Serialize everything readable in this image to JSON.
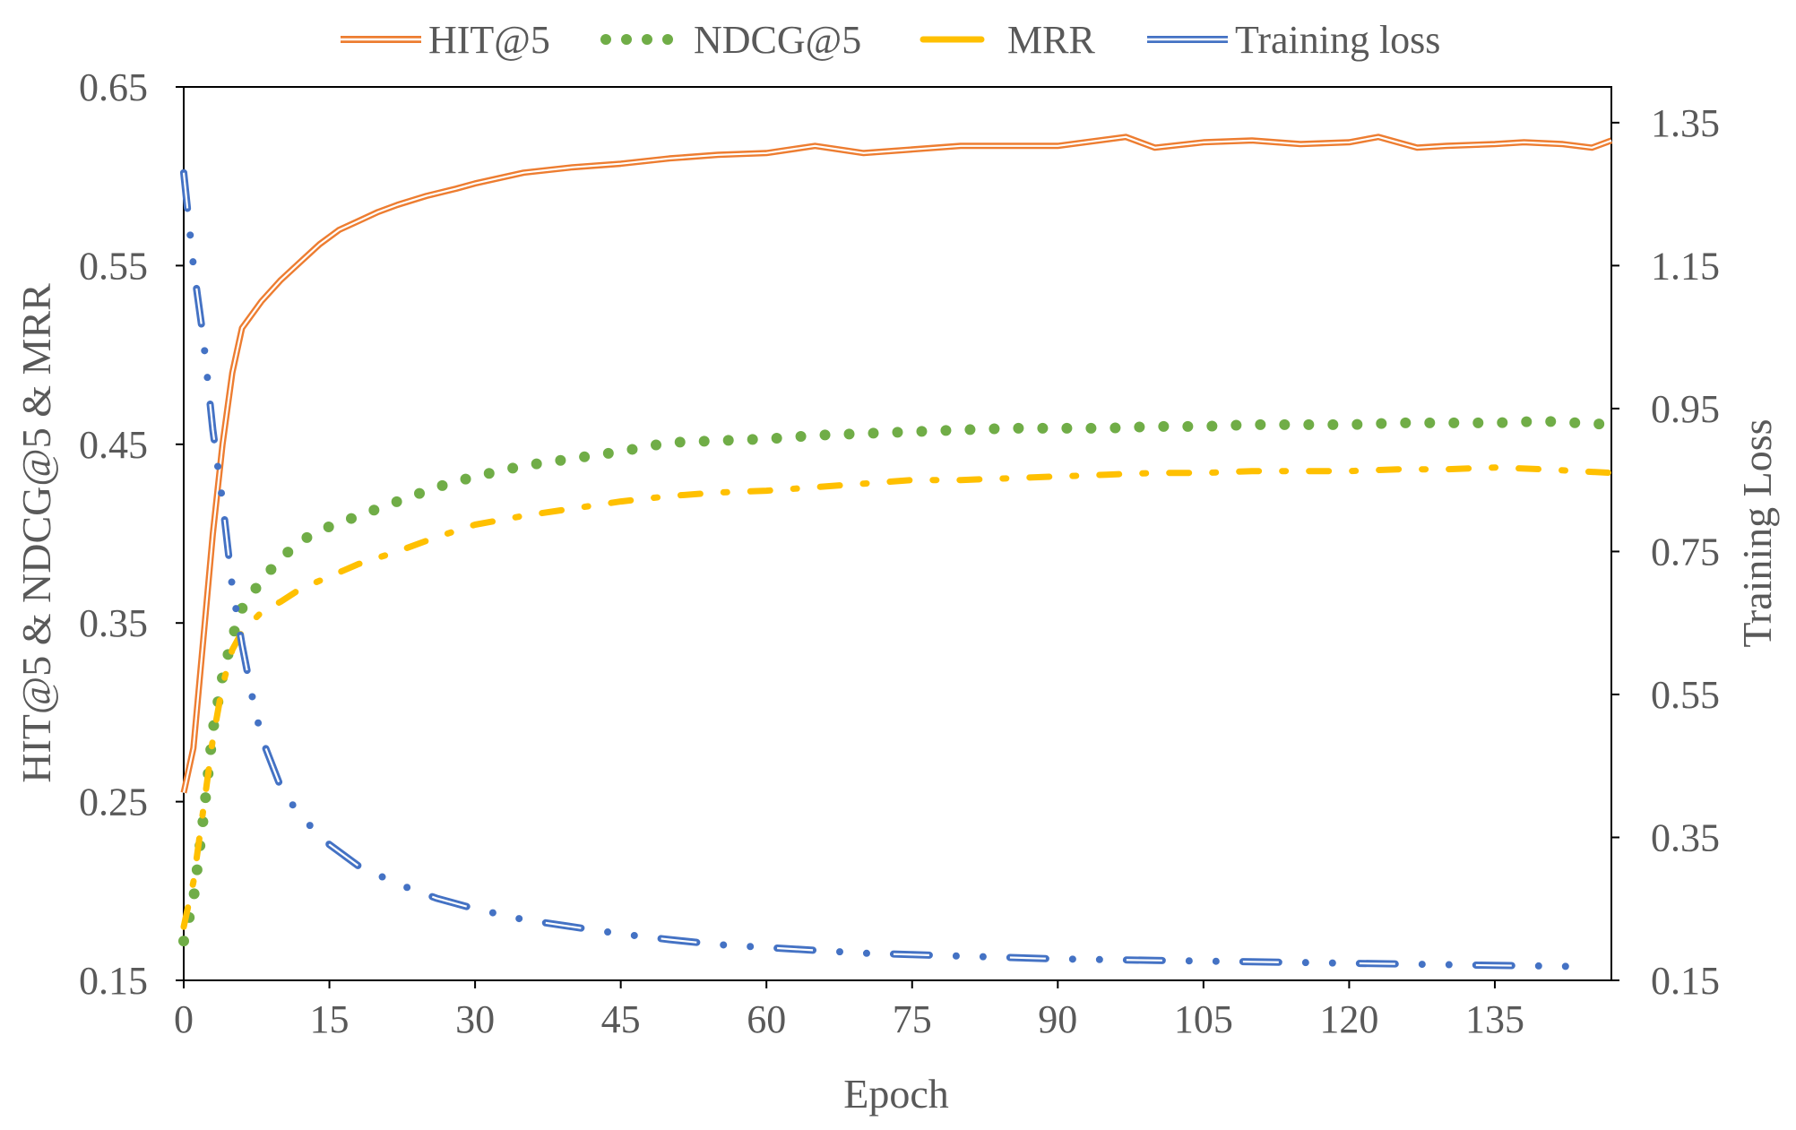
{
  "chart_data": {
    "type": "line",
    "title": "",
    "xlabel": "Epoch",
    "ylabel_left": "HIT@5 & NDCG@5 & MRR",
    "ylabel_right": "Training Loss",
    "xlim": [
      0,
      147
    ],
    "ylim_left": [
      0.15,
      0.65
    ],
    "ylim_right": [
      0.15,
      1.4
    ],
    "x_ticks": [
      "0",
      "15",
      "30",
      "45",
      "60",
      "75",
      "90",
      "105",
      "120",
      "135"
    ],
    "y_left_ticks": [
      "0.15",
      "0.25",
      "0.35",
      "0.45",
      "0.55",
      "0.65"
    ],
    "y_right_ticks": [
      "0.15",
      "0.35",
      "0.55",
      "0.75",
      "0.95",
      "1.15",
      "1.35"
    ],
    "legend_position": "top",
    "grid": false,
    "series": [
      {
        "name": "HIT@5",
        "axis": "left",
        "style": "double-line",
        "color": "#ED7D31",
        "x": [
          0,
          1,
          2,
          3,
          4,
          5,
          6,
          8,
          10,
          12,
          14,
          16,
          18,
          20,
          22,
          25,
          28,
          30,
          35,
          40,
          45,
          50,
          55,
          60,
          65,
          70,
          75,
          80,
          85,
          90,
          97,
          100,
          105,
          110,
          115,
          120,
          123,
          127,
          130,
          135,
          138,
          142,
          145,
          147
        ],
        "values": [
          0.255,
          0.28,
          0.34,
          0.4,
          0.45,
          0.49,
          0.515,
          0.53,
          0.542,
          0.552,
          0.562,
          0.57,
          0.575,
          0.58,
          0.584,
          0.589,
          0.593,
          0.596,
          0.602,
          0.605,
          0.607,
          0.61,
          0.612,
          0.613,
          0.617,
          0.613,
          0.615,
          0.617,
          0.617,
          0.617,
          0.622,
          0.616,
          0.619,
          0.62,
          0.618,
          0.619,
          0.622,
          0.616,
          0.617,
          0.618,
          0.619,
          0.618,
          0.616,
          0.62
        ]
      },
      {
        "name": "NDCG@5",
        "axis": "left",
        "style": "dotted",
        "color": "#70AD47",
        "x": [
          0,
          1,
          2,
          3,
          4,
          5,
          6,
          8,
          10,
          12,
          15,
          18,
          22,
          26,
          30,
          35,
          40,
          45,
          50,
          55,
          60,
          65,
          70,
          75,
          80,
          85,
          90,
          95,
          100,
          105,
          110,
          115,
          120,
          125,
          130,
          135,
          140,
          147
        ],
        "values": [
          0.172,
          0.195,
          0.24,
          0.29,
          0.32,
          0.342,
          0.358,
          0.374,
          0.386,
          0.396,
          0.404,
          0.41,
          0.418,
          0.426,
          0.432,
          0.438,
          0.442,
          0.446,
          0.451,
          0.452,
          0.453,
          0.455,
          0.456,
          0.457,
          0.458,
          0.459,
          0.459,
          0.459,
          0.46,
          0.46,
          0.461,
          0.461,
          0.461,
          0.462,
          0.462,
          0.462,
          0.463,
          0.461
        ]
      },
      {
        "name": "MRR",
        "axis": "left",
        "style": "dash",
        "color": "#FFC000",
        "x": [
          0,
          1,
          2,
          3,
          4,
          5,
          6,
          8,
          10,
          12,
          15,
          18,
          22,
          26,
          30,
          35,
          40,
          45,
          50,
          55,
          60,
          65,
          70,
          75,
          80,
          85,
          90,
          95,
          100,
          105,
          110,
          115,
          120,
          125,
          130,
          135,
          140,
          147
        ],
        "values": [
          0.18,
          0.205,
          0.245,
          0.285,
          0.315,
          0.335,
          0.345,
          0.356,
          0.362,
          0.369,
          0.376,
          0.383,
          0.39,
          0.398,
          0.405,
          0.41,
          0.414,
          0.418,
          0.421,
          0.423,
          0.424,
          0.426,
          0.428,
          0.43,
          0.43,
          0.431,
          0.432,
          0.433,
          0.434,
          0.434,
          0.435,
          0.435,
          0.435,
          0.436,
          0.436,
          0.437,
          0.436,
          0.434
        ]
      },
      {
        "name": "Training loss",
        "axis": "right",
        "style": "dash-dot",
        "color": "#4472C4",
        "x": [
          0,
          1,
          2,
          3,
          4,
          5,
          6,
          7,
          8,
          10,
          12,
          15,
          18,
          22,
          26,
          30,
          35,
          40,
          45,
          50,
          55,
          60,
          65,
          70,
          75,
          80,
          85,
          90,
          95,
          100,
          105,
          110,
          115,
          120,
          125,
          130,
          135,
          140,
          145
        ],
        "values": [
          1.28,
          1.15,
          1.05,
          0.92,
          0.82,
          0.7,
          0.62,
          0.55,
          0.49,
          0.42,
          0.38,
          0.34,
          0.31,
          0.285,
          0.265,
          0.25,
          0.235,
          0.225,
          0.215,
          0.207,
          0.2,
          0.196,
          0.192,
          0.188,
          0.186,
          0.184,
          0.182,
          0.18,
          0.179,
          0.178,
          0.177,
          0.176,
          0.175,
          0.174,
          0.173,
          0.172,
          0.171,
          0.17,
          0.169
        ]
      }
    ]
  }
}
